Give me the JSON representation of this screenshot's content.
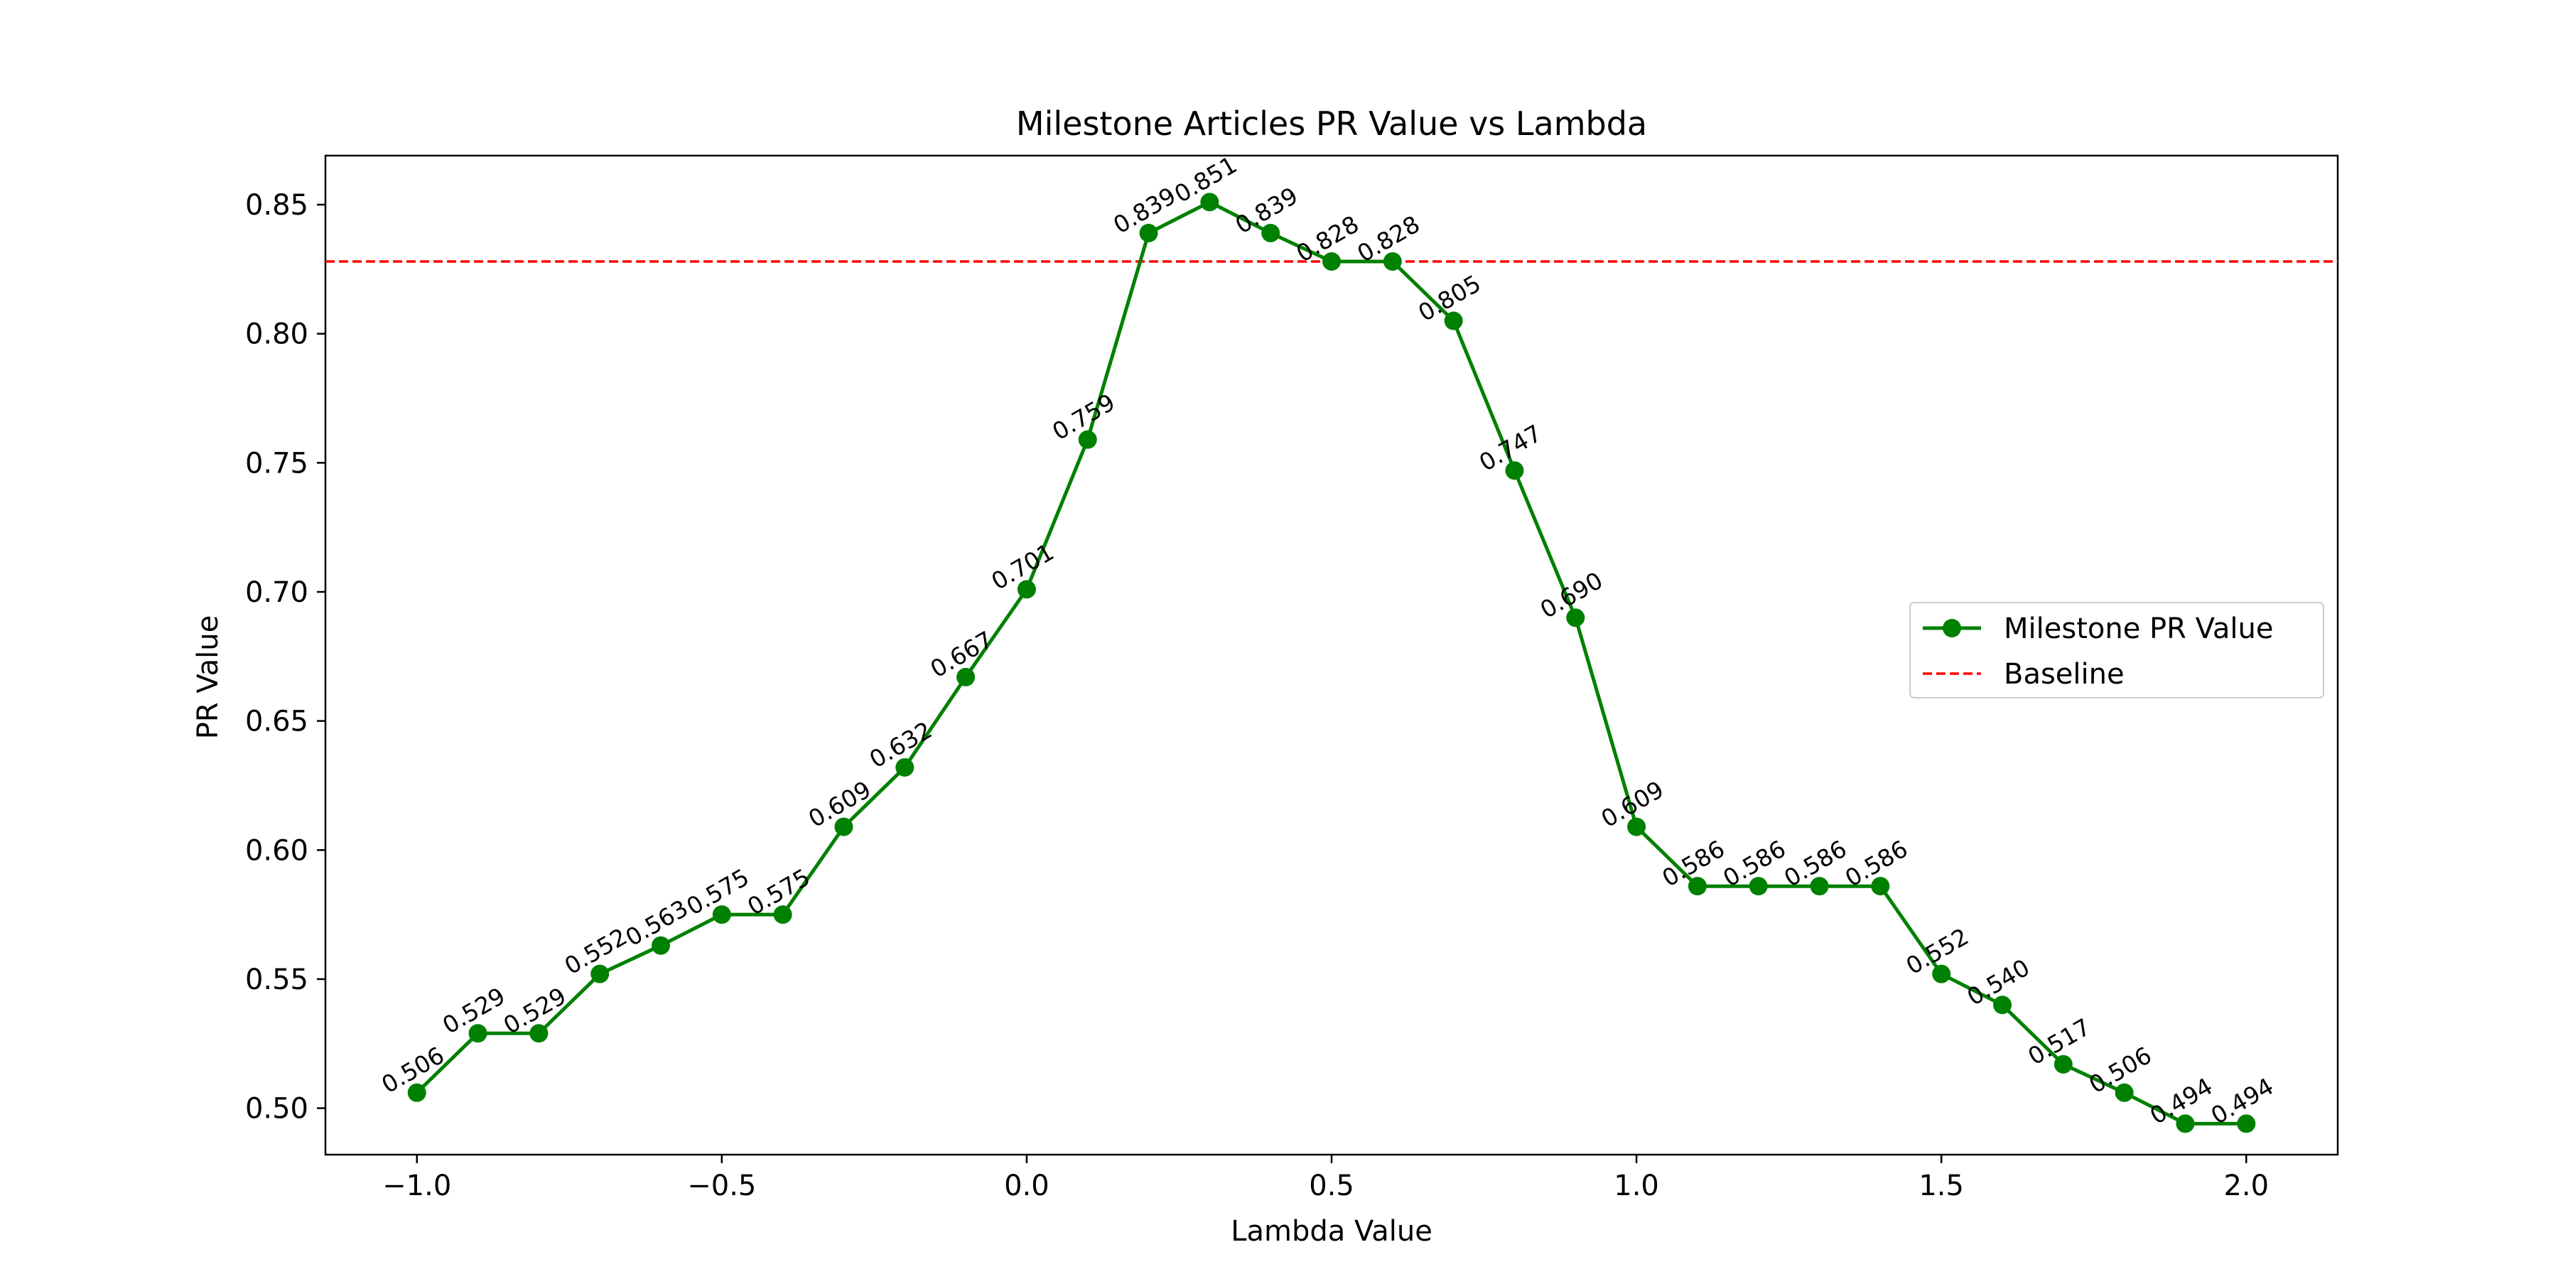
{
  "chart_data": {
    "type": "line",
    "title": "Milestone Articles PR Value vs Lambda",
    "xlabel": "Lambda Value",
    "ylabel": "PR Value",
    "x": [
      -1.0,
      -0.9,
      -0.8,
      -0.7,
      -0.6,
      -0.5,
      -0.4,
      -0.3,
      -0.2,
      -0.1,
      0.0,
      0.1,
      0.2,
      0.3,
      0.4,
      0.5,
      0.6,
      0.7,
      0.8,
      0.9,
      1.0,
      1.1,
      1.2,
      1.3,
      1.4,
      1.5,
      1.6,
      1.7,
      1.8,
      1.9,
      2.0
    ],
    "series": [
      {
        "name": "Milestone PR Value",
        "color": "#008000",
        "style": "solid-with-circle-markers",
        "values": [
          0.506,
          0.529,
          0.529,
          0.552,
          0.563,
          0.575,
          0.575,
          0.609,
          0.632,
          0.667,
          0.701,
          0.759,
          0.839,
          0.851,
          0.839,
          0.828,
          0.828,
          0.805,
          0.747,
          0.69,
          0.609,
          0.586,
          0.586,
          0.586,
          0.586,
          0.552,
          0.54,
          0.517,
          0.506,
          0.494,
          0.494
        ],
        "data_labels": [
          "0.506",
          "0.529",
          "0.529",
          "0.552",
          "0.563",
          "0.575",
          "0.575",
          "0.609",
          "0.632",
          "0.667",
          "0.701",
          "0.759",
          "0.839",
          "0.851",
          "0.839",
          "0.828",
          "0.828",
          "0.805",
          "0.747",
          "0.690",
          "0.609",
          "0.586",
          "0.586",
          "0.586",
          "0.586",
          "0.552",
          "0.540",
          "0.517",
          "0.506",
          "0.494",
          "0.494"
        ]
      }
    ],
    "baseline": {
      "name": "Baseline",
      "value": 0.828,
      "color": "#ff0000",
      "style": "dashed"
    },
    "xlim": [
      -1.15,
      2.15
    ],
    "ylim": [
      0.482,
      0.869
    ],
    "xticks": [
      -1.0,
      -0.5,
      0.0,
      0.5,
      1.0,
      1.5,
      2.0
    ],
    "xtick_labels": [
      "−1.0",
      "−0.5",
      "0.0",
      "0.5",
      "1.0",
      "1.5",
      "2.0"
    ],
    "yticks": [
      0.5,
      0.55,
      0.6,
      0.65,
      0.7,
      0.75,
      0.8,
      0.85
    ],
    "ytick_labels": [
      "0.50",
      "0.55",
      "0.60",
      "0.65",
      "0.70",
      "0.75",
      "0.80",
      "0.85"
    ],
    "grid": false,
    "legend": {
      "position": "center-right",
      "entries": [
        "Milestone PR Value",
        "Baseline"
      ]
    }
  }
}
